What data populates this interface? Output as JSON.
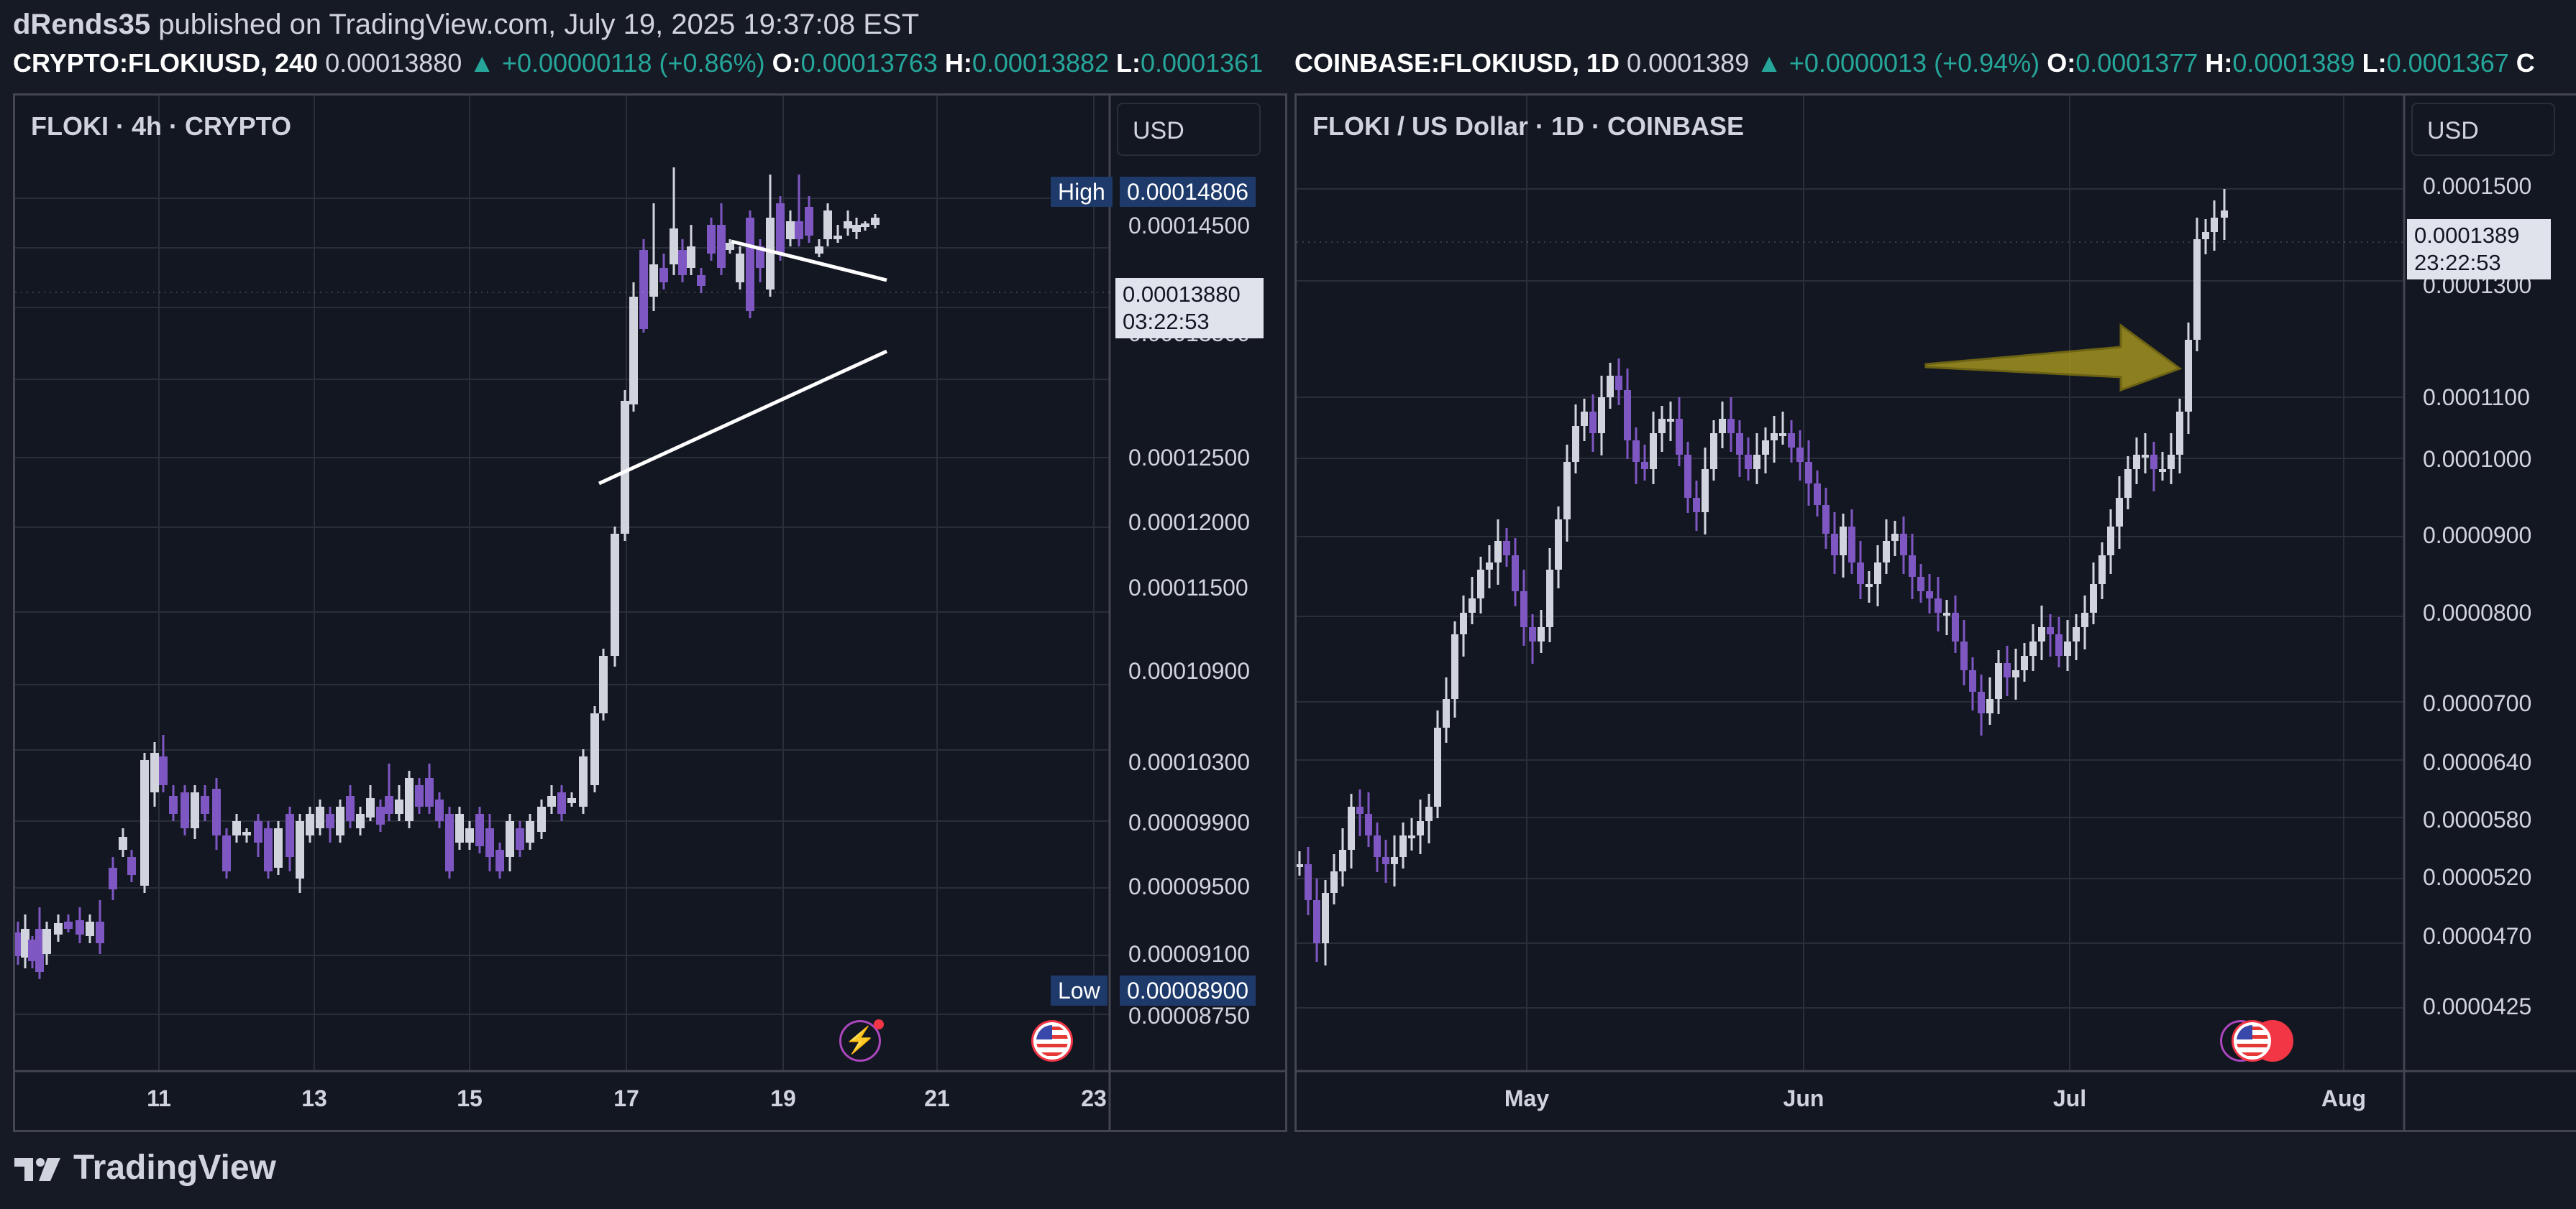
{
  "header": {
    "author": "dRends35",
    "published_text": " published on TradingView.com, July 19, 2025 19:37:08 EST"
  },
  "left_ohlc": {
    "symbol": "CRYPTO:FLOKIUSD, 240",
    "last": "0.00013880",
    "change": "▲ +0.00000118 (+0.86%)",
    "o_label": "O:",
    "o": "0.00013763",
    "h_label": "H:",
    "h": "0.00013882",
    "l_label": "L:",
    "l": "0.0001361"
  },
  "right_ohlc": {
    "symbol": "COINBASE:FLOKIUSD, 1D",
    "last": "0.0001389",
    "change": "▲ +0.0000013 (+0.94%)",
    "o_label": "O:",
    "o": "0.0001377",
    "h_label": "H:",
    "h": "0.0001389",
    "l_label": "L:",
    "l": "0.0001367",
    "c_label": "C"
  },
  "left_panel": {
    "title": "FLOKI · 4h · CRYPTO",
    "currency": "USD",
    "high_label": "High",
    "high_value": "0.00014806",
    "low_label": "Low",
    "low_value": "0.00008900",
    "last_price": "0.00013880",
    "countdown": "03:22:53",
    "price_ticks": [
      "0.00014500",
      "0.00013500",
      "0.00012500",
      "0.00012000",
      "0.00011500",
      "0.00010900",
      "0.00010300",
      "0.00009900",
      "0.00009500",
      "0.00009100",
      "0.00008750"
    ],
    "date_ticks": [
      "11",
      "13",
      "15",
      "17",
      "19",
      "21",
      "23"
    ]
  },
  "right_panel": {
    "title": "FLOKI / US Dollar · 1D · COINBASE",
    "currency": "USD",
    "last_price": "0.0001389",
    "countdown": "23:22:53",
    "price_ticks": [
      "0.0001500",
      "0.0001300",
      "0.0001100",
      "0.0001000",
      "0.0000900",
      "0.0000800",
      "0.0000700",
      "0.0000640",
      "0.0000580",
      "0.0000520",
      "0.0000470",
      "0.0000425"
    ],
    "date_ticks": [
      "May",
      "Jun",
      "Jul",
      "Aug"
    ]
  },
  "footer": {
    "brand": "TradingView"
  },
  "colors": {
    "bull": "#d1d4dc",
    "bear": "#7e57c2",
    "teal": "#26a69a",
    "arrow": "#b5a21f",
    "grid": "#2a2e39"
  }
}
